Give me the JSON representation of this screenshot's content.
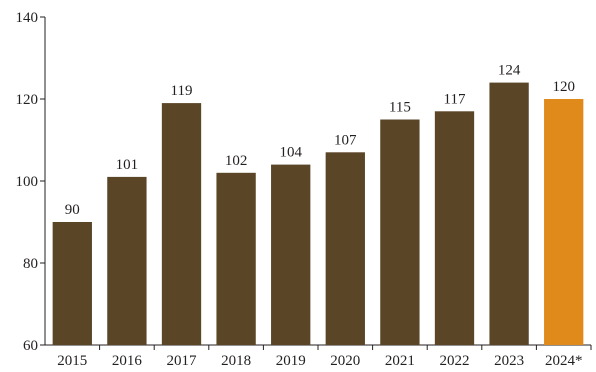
{
  "chart_data": {
    "type": "bar",
    "title": "",
    "xlabel": "",
    "ylabel": "",
    "categories": [
      "2015",
      "2016",
      "2017",
      "2018",
      "2019",
      "2020",
      "2021",
      "2022",
      "2023",
      "2024*"
    ],
    "values": [
      90,
      101,
      119,
      102,
      104,
      107,
      115,
      117,
      124,
      120
    ],
    "data_labels": [
      "90",
      "101",
      "119",
      "102",
      "104",
      "107",
      "115",
      "117",
      "124",
      "120"
    ],
    "ylim": [
      60,
      140
    ],
    "yticks": [
      60,
      80,
      100,
      120,
      140
    ],
    "grid": false,
    "legend": "none",
    "colors": {
      "bar": "#5a4527",
      "highlight": "#e08a1c",
      "axis": "#231f20",
      "text": "#231f20"
    },
    "highlight_index": 9
  }
}
